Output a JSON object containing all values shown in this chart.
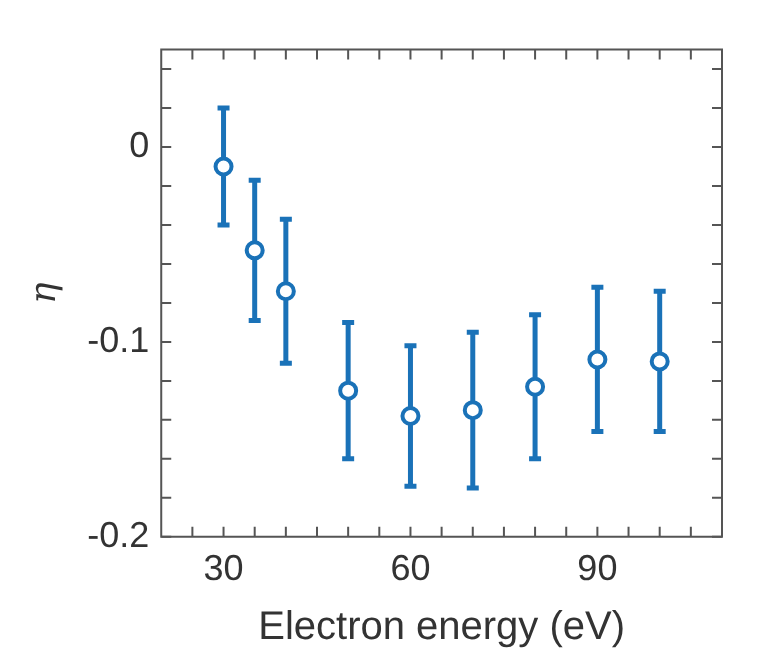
{
  "chart_data": {
    "type": "scatter",
    "xlabel": "Electron energy (eV)",
    "ylabel": "η",
    "x": [
      30,
      35,
      40,
      50,
      60,
      70,
      80,
      90,
      100
    ],
    "values": [
      -0.01,
      -0.053,
      -0.074,
      -0.125,
      -0.138,
      -0.135,
      -0.123,
      -0.109,
      -0.11
    ],
    "errors": [
      0.03,
      0.036,
      0.037,
      0.035,
      0.036,
      0.04,
      0.037,
      0.037,
      0.036
    ],
    "color": "#1a72b8",
    "marker": "circle",
    "grid": false,
    "legend": false,
    "xlim": [
      20,
      110
    ],
    "xticks": [
      {
        "value": 25,
        "label": null
      },
      30,
      {
        "value": 35,
        "label": null
      },
      {
        "value": 40,
        "label": null
      },
      {
        "value": 45,
        "label": null
      },
      {
        "value": 50,
        "label": null
      },
      {
        "value": 55,
        "label": null
      },
      60,
      {
        "value": 65,
        "label": null
      },
      {
        "value": 70,
        "label": null
      },
      {
        "value": 75,
        "label": null
      },
      {
        "value": 80,
        "label": null
      },
      {
        "value": 85,
        "label": null
      },
      90,
      {
        "value": 95,
        "label": null
      },
      {
        "value": 100,
        "label": null
      },
      {
        "value": 105,
        "label": null
      }
    ],
    "ylim": [
      -0.2,
      0.05
    ],
    "yticks": [
      -0.2,
      {
        "value": -0.18,
        "label": null
      },
      {
        "value": -0.16,
        "label": null
      },
      {
        "value": -0.14,
        "label": null
      },
      {
        "value": -0.12,
        "label": null
      },
      -0.1,
      {
        "value": -0.08,
        "label": null
      },
      {
        "value": -0.06,
        "label": null
      },
      {
        "value": -0.04,
        "label": null
      },
      {
        "value": -0.02,
        "label": null
      },
      0,
      {
        "value": 0.02,
        "label": null
      },
      {
        "value": 0.04,
        "label": null
      }
    ]
  }
}
